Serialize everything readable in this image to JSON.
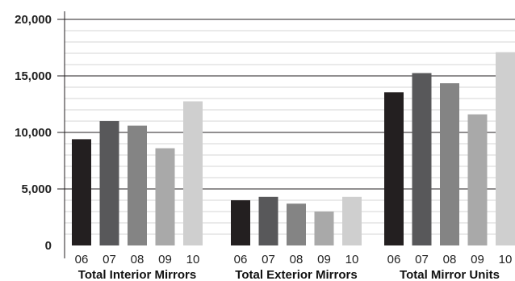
{
  "chart_data": {
    "type": "bar",
    "title": "",
    "xlabel": "",
    "ylabel": "",
    "ylim": [
      0,
      20000
    ],
    "yticks": [
      {
        "value": 0,
        "label": "0"
      },
      {
        "value": 5000,
        "label": "5,000"
      },
      {
        "value": 10000,
        "label": "10,000"
      },
      {
        "value": 15000,
        "label": "15,000"
      },
      {
        "value": 20000,
        "label": "20,000"
      }
    ],
    "grid": "horizontal minor gridlines every 1,000; major lines at 5,000 intervals",
    "legend": "none",
    "series_colors": [
      "#231f20",
      "#58585a",
      "#848484",
      "#a9a9a9",
      "#cfcfcf"
    ],
    "groups": [
      {
        "label": "Total Interior Mirrors",
        "bars": [
          {
            "category": "06",
            "value": 9400
          },
          {
            "category": "07",
            "value": 11000
          },
          {
            "category": "08",
            "value": 10600
          },
          {
            "category": "09",
            "value": 8600
          },
          {
            "category": "10",
            "value": 12750
          }
        ]
      },
      {
        "label": "Total Exterior Mirrors",
        "bars": [
          {
            "category": "06",
            "value": 4000
          },
          {
            "category": "07",
            "value": 4300
          },
          {
            "category": "08",
            "value": 3700
          },
          {
            "category": "09",
            "value": 3000
          },
          {
            "category": "10",
            "value": 4300
          }
        ]
      },
      {
        "label": "Total Mirror Units",
        "bars": [
          {
            "category": "06",
            "value": 13550
          },
          {
            "category": "07",
            "value": 15250
          },
          {
            "category": "08",
            "value": 14350
          },
          {
            "category": "09",
            "value": 11600
          },
          {
            "category": "10",
            "value": 17100
          }
        ]
      }
    ]
  }
}
